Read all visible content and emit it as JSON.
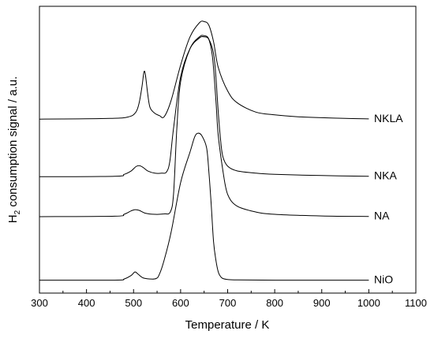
{
  "chart_data": {
    "type": "line",
    "xlabel": "Temperature / K",
    "ylabel": "H",
    "ylabel_subscript": "2",
    "ylabel_rest": " consumption signal / a.u.",
    "xlim": [
      300,
      1100
    ],
    "xticks": [
      300,
      400,
      500,
      600,
      700,
      800,
      900,
      1000,
      1100
    ],
    "y_ticks_shown": false,
    "series": [
      {
        "name": "NKLA",
        "x": [
          300,
          450,
          490,
          505,
          512,
          518,
          522,
          525,
          530,
          535,
          545,
          555,
          565,
          580,
          600,
          620,
          640,
          650,
          660,
          670,
          680,
          700,
          720,
          760,
          800,
          850,
          900,
          950,
          1000
        ],
        "y": [
          0.52,
          0.523,
          0.53,
          0.55,
          0.59,
          0.66,
          0.72,
          0.71,
          0.63,
          0.57,
          0.545,
          0.535,
          0.53,
          0.6,
          0.75,
          0.87,
          0.93,
          0.935,
          0.92,
          0.85,
          0.74,
          0.64,
          0.59,
          0.55,
          0.538,
          0.53,
          0.526,
          0.523,
          0.521
        ]
      },
      {
        "name": "NKA",
        "x": [
          300,
          460,
          480,
          495,
          505,
          512,
          520,
          530,
          545,
          560,
          570,
          577,
          585,
          600,
          620,
          640,
          650,
          660,
          670,
          675,
          680,
          685,
          690,
          700,
          720,
          760,
          800,
          900,
          1000
        ],
        "y": [
          0.275,
          0.277,
          0.285,
          0.3,
          0.318,
          0.322,
          0.315,
          0.3,
          0.29,
          0.29,
          0.295,
          0.34,
          0.48,
          0.7,
          0.82,
          0.865,
          0.87,
          0.86,
          0.8,
          0.7,
          0.55,
          0.43,
          0.36,
          0.32,
          0.3,
          0.29,
          0.285,
          0.28,
          0.277
        ]
      },
      {
        "name": "NA",
        "x": [
          300,
          460,
          480,
          495,
          503,
          512,
          525,
          545,
          565,
          578,
          585,
          592,
          600,
          620,
          640,
          650,
          660,
          668,
          675,
          680,
          690,
          700,
          720,
          760,
          800,
          900,
          1000
        ],
        "y": [
          0.105,
          0.107,
          0.115,
          0.13,
          0.135,
          0.132,
          0.12,
          0.115,
          0.117,
          0.125,
          0.2,
          0.48,
          0.68,
          0.82,
          0.87,
          0.875,
          0.86,
          0.78,
          0.6,
          0.45,
          0.3,
          0.2,
          0.15,
          0.125,
          0.115,
          0.108,
          0.106
        ]
      },
      {
        "name": "NiO",
        "x": [
          300,
          460,
          480,
          495,
          503,
          510,
          520,
          535,
          548,
          555,
          565,
          580,
          600,
          620,
          630,
          637,
          645,
          655,
          660,
          665,
          670,
          675,
          680,
          685,
          690,
          700,
          720,
          800,
          1000
        ],
        "y": [
          -0.165,
          -0.165,
          -0.16,
          -0.145,
          -0.13,
          -0.14,
          -0.155,
          -0.16,
          -0.158,
          -0.14,
          -0.08,
          0.04,
          0.25,
          0.38,
          0.445,
          0.46,
          0.45,
          0.4,
          0.3,
          0.16,
          0.0,
          -0.08,
          -0.13,
          -0.15,
          -0.158,
          -0.162,
          -0.164,
          -0.165,
          -0.165
        ]
      }
    ]
  }
}
